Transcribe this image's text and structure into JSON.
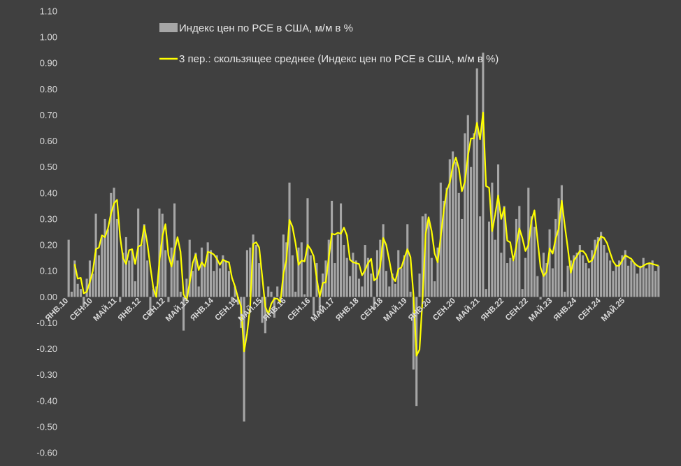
{
  "chart_data": {
    "type": "bar",
    "colors": {
      "background": "#404040",
      "bars": "#a6a6a6",
      "line": "#ffff00",
      "text": "#d9d9d9"
    },
    "ylim": [
      -0.6,
      1.1
    ],
    "y_ticks": [
      "1.10",
      "1.00",
      "0.90",
      "0.80",
      "0.70",
      "0.60",
      "0.50",
      "0.40",
      "0.30",
      "0.20",
      "0.10",
      "0.00",
      "-0.10",
      "-0.20",
      "-0.30",
      "-0.40",
      "-0.50",
      "-0.60"
    ],
    "x_tick_labels": [
      {
        "label": "ЯНВ.10",
        "index": 0
      },
      {
        "label": "СЕН.10",
        "index": 8
      },
      {
        "label": "МАЙ.11",
        "index": 16
      },
      {
        "label": "ЯНВ.12",
        "index": 24
      },
      {
        "label": "СЕН.12",
        "index": 32
      },
      {
        "label": "МАЙ.13",
        "index": 40
      },
      {
        "label": "ЯНВ.14",
        "index": 48
      },
      {
        "label": "СЕН.14",
        "index": 56
      },
      {
        "label": "МАЙ.15",
        "index": 64
      },
      {
        "label": "ЯНВ.16",
        "index": 72
      },
      {
        "label": "СЕН.16",
        "index": 80
      },
      {
        "label": "МАЙ.17",
        "index": 88
      },
      {
        "label": "ЯНВ.18",
        "index": 96
      },
      {
        "label": "СЕН.18",
        "index": 104
      },
      {
        "label": "МАЙ.19",
        "index": 112
      },
      {
        "label": "ЯНВ.20",
        "index": 120
      },
      {
        "label": "СЕН.20",
        "index": 128
      },
      {
        "label": "МАЙ.21",
        "index": 136
      },
      {
        "label": "ЯНВ.22",
        "index": 144
      },
      {
        "label": "СЕН.22",
        "index": 152
      },
      {
        "label": "МАЙ.23",
        "index": 160
      },
      {
        "label": "ЯНВ.24",
        "index": 168
      },
      {
        "label": "СЕН.24",
        "index": 176
      },
      {
        "label": "МАЙ.25",
        "index": 184
      }
    ],
    "series": [
      {
        "name": "Индекс цен по PCE в США, м/м в %",
        "type": "bar",
        "values": [
          0.22,
          0.02,
          0.14,
          0.05,
          0.03,
          -0.04,
          0.07,
          0.14,
          0.09,
          0.32,
          0.16,
          0.23,
          0.3,
          0.26,
          0.4,
          0.42,
          0.3,
          -0.02,
          0.17,
          0.23,
          0.14,
          0.18,
          0.06,
          0.34,
          0.2,
          0.28,
          0.14,
          -0.07,
          0.03,
          0.04,
          0.34,
          0.32,
          0.18,
          -0.02,
          0.19,
          0.36,
          0.14,
          0.02,
          -0.13,
          0.07,
          0.22,
          0.1,
          0.17,
          0.04,
          0.19,
          0.12,
          0.21,
          0.18,
          0.1,
          0.16,
          0.11,
          0.16,
          0.14,
          0.1,
          -0.02,
          0.04,
          -0.03,
          -0.12,
          -0.48,
          0.18,
          0.19,
          0.24,
          0.2,
          0.13,
          -0.1,
          -0.14,
          0.04,
          0.02,
          -0.08,
          0.04,
          -0.02,
          0.24,
          0.21,
          0.44,
          0.16,
          0.02,
          0.19,
          0.21,
          0.01,
          0.38,
          0.16,
          -0.07,
          0.13,
          -0.06,
          0.09,
          0.14,
          0.22,
          0.37,
          0.13,
          0.24,
          0.36,
          0.2,
          0.15,
          0.08,
          0.17,
          0.14,
          0.07,
          0.04,
          0.2,
          0.15,
          0.09,
          -0.05,
          0.18,
          0.22,
          0.28,
          0.1,
          0.04,
          0.09,
          0.05,
          0.18,
          0.11,
          0.16,
          0.28,
          0.02,
          -0.28,
          -0.42,
          0.09,
          0.31,
          0.32,
          0.29,
          0.15,
          0.06,
          0.19,
          0.44,
          0.37,
          0.42,
          0.53,
          0.56,
          0.52,
          0.4,
          0.3,
          0.63,
          0.7,
          0.5,
          0.63,
          0.88,
          0.31,
          0.94,
          0.03,
          0.29,
          0.44,
          0.22,
          0.51,
          0.17,
          0.35,
          0.13,
          0.15,
          0.14,
          0.3,
          0.35,
          0.03,
          0.15,
          0.42,
          0.31,
          0.27,
          0.08,
          -0.01,
          0.17,
          0.13,
          0.26,
          0.11,
          0.3,
          0.38,
          0.43,
          0.02,
          0.12,
          0.14,
          0.16,
          0.17,
          0.2,
          0.16,
          0.13,
          0.11,
          0.18,
          0.22,
          0.23,
          0.25,
          0.2,
          0.17,
          0.14,
          0.1,
          0.12,
          0.14,
          0.16,
          0.18,
          0.12,
          0.14,
          0.13,
          0.09,
          0.12,
          0.15,
          0.11,
          0.13,
          0.14,
          0.1,
          0.12
        ]
      },
      {
        "name": "3 пер.: скользящее среднее (Индекс цен по PCE в США, м/м в %)",
        "type": "line"
      }
    ]
  }
}
